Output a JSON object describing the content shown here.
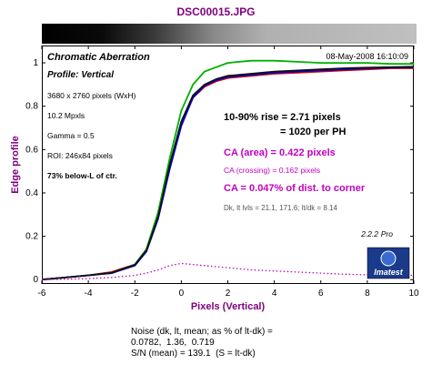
{
  "title": "DSC00015.JPG",
  "chart_data": {
    "type": "line",
    "title": "Chromatic Aberration",
    "subtitle": "Profile: Vertical",
    "timestamp": "08-May-2008 16:10:09",
    "xlabel": "Pixels (Vertical)",
    "ylabel": "Edge profile",
    "xlim": [
      -6,
      10
    ],
    "ylim": [
      -0.02,
      1.08
    ],
    "xticks": [
      "-6",
      "-4",
      "-2",
      "0",
      "2",
      "4",
      "6",
      "8",
      "10"
    ],
    "yticks": [
      "0",
      "0.2",
      "0.4",
      "0.6",
      "0.8",
      "1"
    ],
    "grid": false,
    "x": [
      -6,
      -5,
      -4,
      -3,
      -2,
      -1.5,
      -1,
      -0.5,
      0,
      0.5,
      1,
      1.5,
      2,
      3,
      4,
      5,
      6,
      7,
      8,
      9,
      10
    ],
    "series": [
      {
        "color": "#d40000",
        "values": [
          0.0,
          0.01,
          0.02,
          0.035,
          0.07,
          0.14,
          0.3,
          0.52,
          0.72,
          0.84,
          0.89,
          0.915,
          0.93,
          0.94,
          0.95,
          0.955,
          0.96,
          0.965,
          0.97,
          0.975,
          0.975
        ]
      },
      {
        "color": "#00b000",
        "values": [
          0.0,
          0.01,
          0.02,
          0.03,
          0.07,
          0.14,
          0.31,
          0.56,
          0.78,
          0.9,
          0.96,
          0.98,
          1.0,
          1.01,
          1.01,
          1.005,
          1.0,
          1.0,
          1.0,
          0.995,
          0.995
        ]
      },
      {
        "color": "#0000dd",
        "values": [
          0.0,
          0.01,
          0.02,
          0.03,
          0.065,
          0.13,
          0.28,
          0.51,
          0.71,
          0.84,
          0.895,
          0.92,
          0.935,
          0.945,
          0.955,
          0.96,
          0.965,
          0.97,
          0.975,
          0.978,
          0.98
        ]
      },
      {
        "color": "#111111",
        "values": [
          0.0,
          0.01,
          0.02,
          0.032,
          0.068,
          0.135,
          0.29,
          0.53,
          0.73,
          0.85,
          0.9,
          0.925,
          0.94,
          0.95,
          0.96,
          0.965,
          0.97,
          0.975,
          0.978,
          0.98,
          0.982
        ]
      },
      {
        "color": "#c000c0",
        "style": "dotted",
        "values": [
          0.0,
          0.002,
          0.005,
          0.01,
          0.02,
          0.03,
          0.045,
          0.065,
          0.075,
          0.07,
          0.065,
          0.06,
          0.055,
          0.045,
          0.04,
          0.035,
          0.03,
          0.025,
          0.022,
          0.02,
          0.02
        ]
      }
    ],
    "annotations": {
      "pixel_size": "3680 x 2760 pixels (WxH)",
      "megapixels": "10.2 Mpxls",
      "gamma": "Gamma = 0.5",
      "roi": "ROI: 246x84 pixels",
      "location": "73% below-L of ctr.",
      "rise": "10-90% rise = 2.71 pixels",
      "per_ph": "= 1020 per PH",
      "ca_area": "CA (area) = 0.422 pixels",
      "ca_crossing": "CA (crossing) = 0.162 pixels",
      "ca_corner": "CA = 0.047% of dist. to corner",
      "levels": "Dk, lt lvls = 21.1, 171.6;  lt/dk = 8.14",
      "version": "2.2.2",
      "edition": "Pro",
      "logo": "Imatest"
    }
  },
  "noise": {
    "line1": "Noise (dk, lt, mean; as % of lt-dk) =",
    "line2": "0.0782,  1.36,  0.719",
    "line3": "S/N (mean) = 139.1  (S = lt-dk)"
  }
}
